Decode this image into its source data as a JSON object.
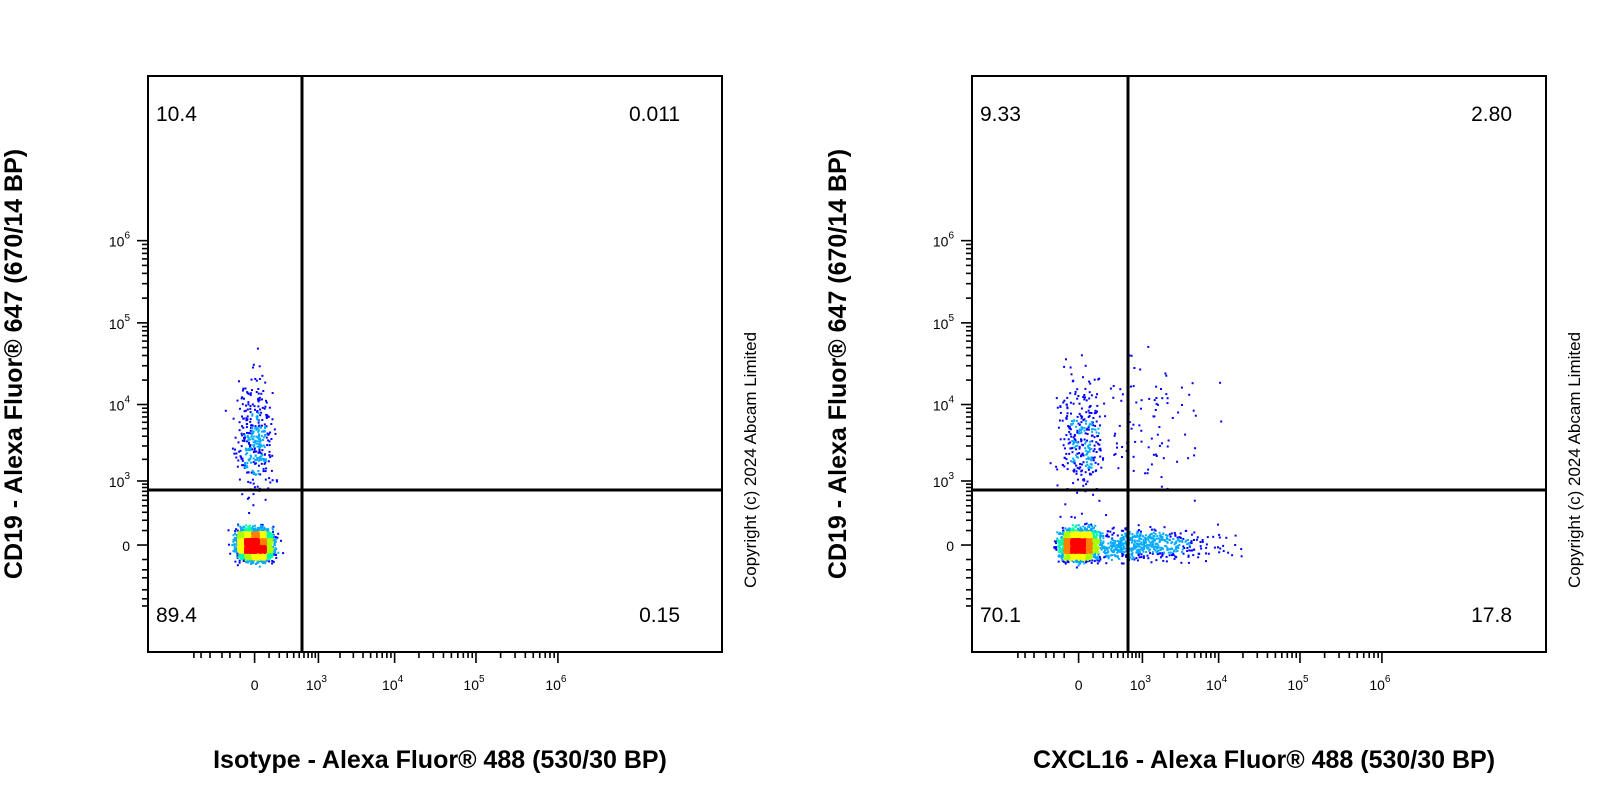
{
  "chart_data": [
    {
      "type": "scatter",
      "title": "",
      "xlabel": "Isotype - Alexa Fluor® 488 (530/30 BP)",
      "ylabel": "CD19 - Alexa Fluor® 647 (670/14 BP)",
      "copyright": "Copyright (c) 2024 Abcam Limited",
      "x_scale": "biexponential",
      "y_scale": "biexponential",
      "x_ticks": [
        {
          "base": "0",
          "exp": ""
        },
        {
          "base": "10",
          "exp": "3"
        },
        {
          "base": "10",
          "exp": "4"
        },
        {
          "base": "10",
          "exp": "5"
        },
        {
          "base": "10",
          "exp": "6"
        }
      ],
      "y_ticks": [
        {
          "base": "0",
          "exp": ""
        },
        {
          "base": "10",
          "exp": "3"
        },
        {
          "base": "10",
          "exp": "4"
        },
        {
          "base": "10",
          "exp": "5"
        },
        {
          "base": "10",
          "exp": "6"
        }
      ],
      "gate": {
        "x": 300,
        "y": 400
      },
      "quadrants": {
        "upper_left": "10.4",
        "upper_right": "0.011",
        "lower_left": "89.4",
        "lower_right": "0.15"
      },
      "populations": [
        {
          "name": "",
          "x_center": 0,
          "y_center": 0,
          "x_spread": 60,
          "y_spread": 50,
          "weight": 0.894
        },
        {
          "name": "",
          "x_center": 0,
          "y_center": 3500,
          "x_spread": 60,
          "y_spread": 0.35,
          "weight": 0.104
        }
      ],
      "colormap": [
        "#0000ff",
        "#00aaff",
        "#00ffaa",
        "#aaff00",
        "#ffff00",
        "#ff8000",
        "#ff0000"
      ]
    },
    {
      "type": "scatter",
      "title": "",
      "xlabel": "CXCL16 - Alexa Fluor® 488 (530/30 BP)",
      "ylabel": "CD19 - Alexa Fluor® 647 (670/14 BP)",
      "copyright": "Copyright (c) 2024 Abcam Limited",
      "x_scale": "biexponential",
      "y_scale": "biexponential",
      "x_ticks": [
        {
          "base": "0",
          "exp": ""
        },
        {
          "base": "10",
          "exp": "3"
        },
        {
          "base": "10",
          "exp": "4"
        },
        {
          "base": "10",
          "exp": "5"
        },
        {
          "base": "10",
          "exp": "6"
        }
      ],
      "y_ticks": [
        {
          "base": "0",
          "exp": ""
        },
        {
          "base": "10",
          "exp": "3"
        },
        {
          "base": "10",
          "exp": "4"
        },
        {
          "base": "10",
          "exp": "5"
        },
        {
          "base": "10",
          "exp": "6"
        }
      ],
      "gate": {
        "x": 300,
        "y": 400
      },
      "quadrants": {
        "upper_left": "9.33",
        "upper_right": "2.80",
        "lower_left": "70.1",
        "lower_right": "17.8"
      },
      "populations": [
        {
          "name": "",
          "x_center": 0,
          "y_center": 0,
          "x_spread": 60,
          "y_spread": 50,
          "weight": 0.701
        },
        {
          "name": "",
          "x_center": 800,
          "y_center": 0,
          "x_spread": 0.5,
          "y_spread": 50,
          "weight": 0.178
        },
        {
          "name": "",
          "x_center": 20,
          "y_center": 4000,
          "x_spread": 80,
          "y_spread": 0.4,
          "weight": 0.093
        },
        {
          "name": "",
          "x_center": 900,
          "y_center": 5000,
          "x_spread": 0.45,
          "y_spread": 0.45,
          "weight": 0.028
        }
      ],
      "colormap": [
        "#0000ff",
        "#00aaff",
        "#00ffaa",
        "#aaff00",
        "#ffff00",
        "#ff8000",
        "#ff0000"
      ]
    }
  ]
}
